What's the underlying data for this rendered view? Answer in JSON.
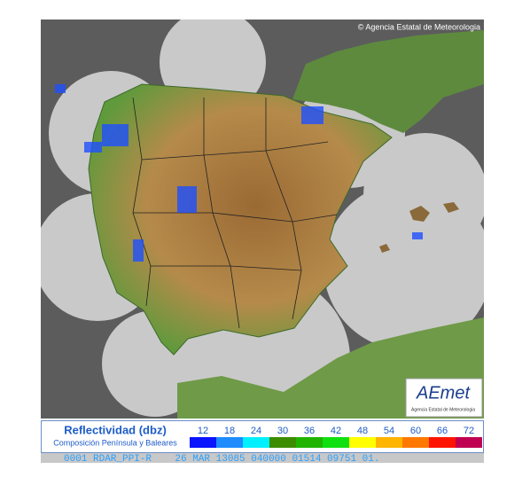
{
  "header": {
    "copyright": "© Agencia Estatal de Meteorologia"
  },
  "logo": {
    "brand": "AEmet",
    "caption": "Agencia Estatal de Meteorologia"
  },
  "legend": {
    "title": "Reflectividad (dbz)",
    "subtitle": "Composición Península y Baleares",
    "scale": [
      {
        "value": 12,
        "color": "#0a14ff"
      },
      {
        "value": 18,
        "color": "#1e8cff"
      },
      {
        "value": 24,
        "color": "#00f0ff"
      },
      {
        "value": 30,
        "color": "#3c8c00"
      },
      {
        "value": 36,
        "color": "#20b400"
      },
      {
        "value": 42,
        "color": "#10e010"
      },
      {
        "value": 48,
        "color": "#ffff00"
      },
      {
        "value": 54,
        "color": "#ffb400"
      },
      {
        "value": 60,
        "color": "#ff7800"
      },
      {
        "value": 66,
        "color": "#ff1400"
      },
      {
        "value": 72,
        "color": "#c00050"
      }
    ]
  },
  "footer": {
    "status": "0001 RDAR_PPI-R    26 MAR 13085 040000 01514 09751 01."
  }
}
